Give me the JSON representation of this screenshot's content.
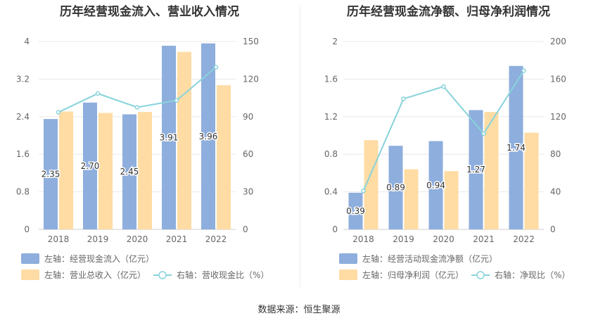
{
  "page_title_left": "历年经营现金流入、营业收入情况",
  "page_title_right": "历年经营现金流净额、归母净利润情况",
  "source": "数据来源：恒生聚源",
  "colors": {
    "bar_primary": "#8eaedd",
    "bar_secondary": "#ffdca4",
    "line": "#88d3db",
    "grid": "#e8e8e8",
    "axis_text": "#666666"
  },
  "chart_data": [
    {
      "type": "bar",
      "title": "历年经营现金流入、营业收入情况",
      "categories": [
        "2018",
        "2019",
        "2020",
        "2021",
        "2022"
      ],
      "left_axis": {
        "ylim": [
          0,
          4
        ],
        "ticks": [
          "0",
          "0.8",
          "1.6",
          "2.4",
          "3.2",
          "4"
        ]
      },
      "right_axis": {
        "ylim": [
          0,
          150
        ],
        "ticks": [
          "0",
          "30",
          "60",
          "90",
          "120",
          "150"
        ]
      },
      "grid": true,
      "legend_position": "bottom",
      "series": [
        {
          "name": "左轴：经营现金流入（亿元）",
          "type": "bar",
          "axis": "left",
          "values": [
            2.35,
            2.7,
            2.45,
            3.91,
            3.96
          ],
          "labels": [
            "2.35",
            "2.70",
            "2.45",
            "3.91",
            "3.96"
          ]
        },
        {
          "name": "左轴：营业总收入（亿元）",
          "type": "bar",
          "axis": "left",
          "values": [
            2.51,
            2.48,
            2.5,
            3.78,
            3.07
          ]
        },
        {
          "name": "右轴：营收现金比（%）",
          "type": "line",
          "axis": "right",
          "values": [
            93.5,
            108.5,
            97.5,
            103.0,
            129.5
          ]
        }
      ]
    },
    {
      "type": "bar",
      "title": "历年经营现金流净额、归母净利润情况",
      "categories": [
        "2018",
        "2019",
        "2020",
        "2021",
        "2022"
      ],
      "left_axis": {
        "ylim": [
          0,
          2
        ],
        "ticks": [
          "0",
          "0.4",
          "0.8",
          "1.2",
          "1.6",
          "2"
        ]
      },
      "right_axis": {
        "ylim": [
          0,
          200
        ],
        "ticks": [
          "0",
          "40",
          "80",
          "120",
          "160",
          "200"
        ]
      },
      "grid": true,
      "legend_position": "bottom",
      "series": [
        {
          "name": "左轴：经营活动现金流净额（亿元）",
          "type": "bar",
          "axis": "left",
          "values": [
            0.39,
            0.89,
            0.94,
            1.27,
            1.74
          ],
          "labels": [
            "0.39",
            "0.89",
            "0.94",
            "1.27",
            "1.74"
          ]
        },
        {
          "name": "左轴：归母净利润（亿元）",
          "type": "bar",
          "axis": "left",
          "values": [
            0.95,
            0.64,
            0.62,
            1.25,
            1.03
          ]
        },
        {
          "name": "右轴：净现比（%）",
          "type": "line",
          "axis": "right",
          "values": [
            41,
            139,
            152,
            102,
            169
          ]
        }
      ]
    }
  ]
}
